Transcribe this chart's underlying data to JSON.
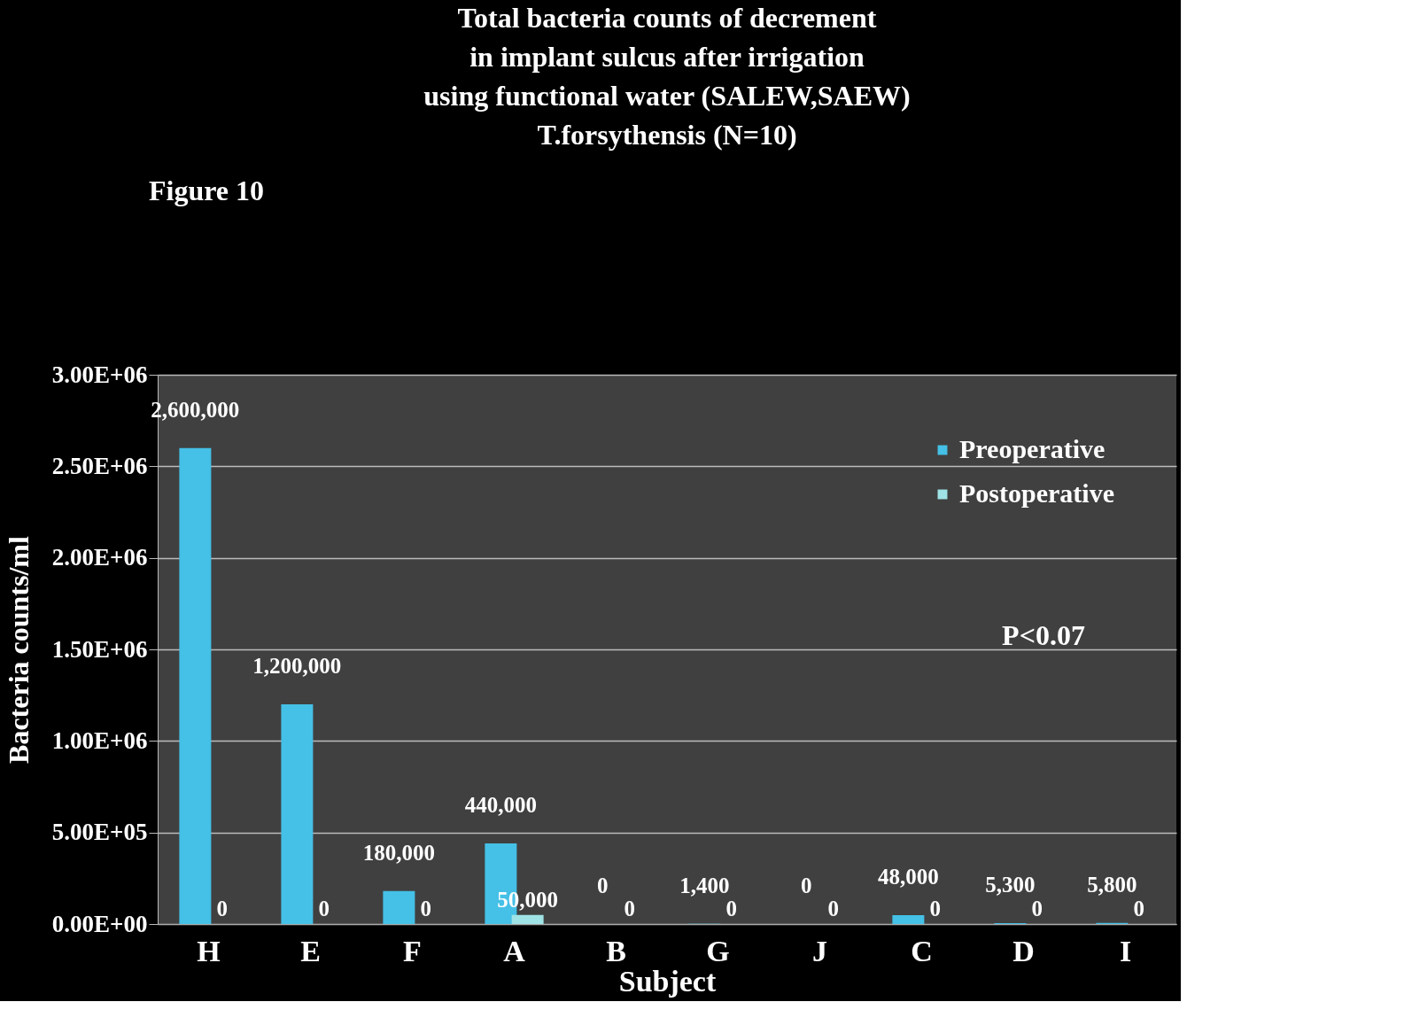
{
  "chart_data": {
    "type": "bar",
    "title": "Total bacteria counts of decrement\n in implant sulcus after irrigation\n using functional water (SALEW,SAEW)\nT.forsythensis (N=10)",
    "xlabel": "Subject",
    "ylabel": "Bacteria counts/ml",
    "categories": [
      "H",
      "E",
      "F",
      "A",
      "B",
      "G",
      "J",
      "C",
      "D",
      "I"
    ],
    "series": [
      {
        "name": "Preoperative",
        "color": "#45c0e6",
        "values": [
          2600000,
          1200000,
          180000,
          440000,
          0,
          1400,
          0,
          48000,
          5300,
          5800
        ],
        "value_labels": [
          "2,600,000",
          "1,200,000",
          "180,000",
          "440,000",
          "0",
          "1,400",
          "0",
          "48,000",
          "5,300",
          "5,800"
        ]
      },
      {
        "name": "Postoperative",
        "color": "#9fe3e6",
        "values": [
          0,
          0,
          0,
          50000,
          0,
          0,
          0,
          0,
          0,
          0
        ],
        "value_labels": [
          "0",
          "0",
          "0",
          "50,000",
          "0",
          "0",
          "0",
          "0",
          "0",
          "0"
        ]
      }
    ],
    "ylim": [
      0,
      3000000
    ],
    "yticks": [
      {
        "value": 0,
        "label": "0.00E+00"
      },
      {
        "value": 500000,
        "label": "5.00E+05"
      },
      {
        "value": 1000000,
        "label": "1.00E+06"
      },
      {
        "value": 1500000,
        "label": "1.50E+06"
      },
      {
        "value": 2000000,
        "label": "2.00E+06"
      },
      {
        "value": 2500000,
        "label": "2.50E+06"
      },
      {
        "value": 3000000,
        "label": "3.00E+06"
      }
    ],
    "grid": "y",
    "legend": "top right",
    "annotations": [
      "Figure 10",
      "P<0.07"
    ]
  }
}
